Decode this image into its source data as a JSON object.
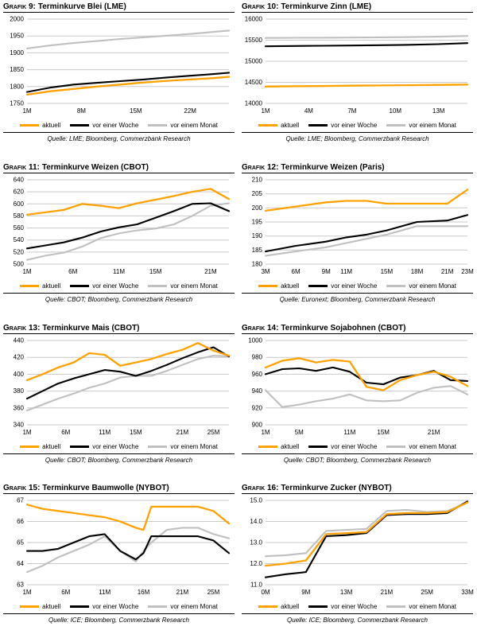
{
  "colors": {
    "aktuell": "#FFA200",
    "week": "#000000",
    "month": "#C0C0C0",
    "grid": "#C9C9C9"
  },
  "legend": {
    "aktuell": "aktuell",
    "week": "vor einer Woche",
    "month": "vor einem Monat"
  },
  "chart_data": [
    {
      "type": "line",
      "label": "Grafik 9:",
      "title": "Terminkurve Blei (LME)",
      "source": "Quelle: LME; Bloomberg, Commerzbank Research",
      "ylim": [
        1750,
        2000
      ],
      "yticks": [
        1750,
        1800,
        1850,
        1900,
        1950,
        2000
      ],
      "ytick_labels": [
        "1750",
        "1800",
        "1850",
        "1900",
        "1950",
        "2000"
      ],
      "x": [
        1,
        4,
        7,
        10,
        13,
        16,
        19,
        22,
        25,
        27
      ],
      "x_ticks": [
        {
          "pos": 1,
          "label": "1M"
        },
        {
          "pos": 8,
          "label": "8M"
        },
        {
          "pos": 15,
          "label": "15M"
        },
        {
          "pos": 22,
          "label": "22M"
        }
      ],
      "series": [
        {
          "name": "aktuell",
          "color": "aktuell",
          "values": [
            1776,
            1786,
            1793,
            1800,
            1806,
            1812,
            1817,
            1821,
            1825,
            1829
          ]
        },
        {
          "name": "vor einer Woche",
          "color": "week",
          "values": [
            1784,
            1797,
            1806,
            1811,
            1816,
            1821,
            1827,
            1832,
            1837,
            1841
          ]
        },
        {
          "name": "vor einem Monat",
          "color": "month",
          "values": [
            1913,
            1922,
            1929,
            1935,
            1941,
            1946,
            1951,
            1956,
            1962,
            1966
          ]
        }
      ]
    },
    {
      "type": "line",
      "label": "Grafik 10:",
      "title": "Terminkurve Zinn (LME)",
      "source": "Quelle: LME; Bloomberg, Commerzbank Research",
      "ylim": [
        14000,
        16000
      ],
      "yticks": [
        14000,
        14500,
        15000,
        15500,
        16000
      ],
      "ytick_labels": [
        "14000",
        "14500",
        "15000",
        "15500",
        "16000"
      ],
      "x": [
        1,
        3,
        5,
        7,
        9,
        11,
        13,
        15
      ],
      "x_ticks": [
        {
          "pos": 1,
          "label": "1M"
        },
        {
          "pos": 4,
          "label": "4M"
        },
        {
          "pos": 7,
          "label": "7M"
        },
        {
          "pos": 10,
          "label": "10M"
        },
        {
          "pos": 13,
          "label": "13M"
        }
      ],
      "series": [
        {
          "name": "aktuell",
          "color": "aktuell",
          "values": [
            14400,
            14408,
            14414,
            14420,
            14427,
            14433,
            14440,
            14447
          ]
        },
        {
          "name": "vor einer Woche",
          "color": "week",
          "values": [
            15355,
            15362,
            15368,
            15374,
            15381,
            15391,
            15406,
            15430
          ]
        },
        {
          "name": "vor einem Monat",
          "color": "month",
          "values": [
            15552,
            15556,
            15559,
            15563,
            15567,
            15573,
            15583,
            15600
          ]
        }
      ]
    },
    {
      "type": "line",
      "label": "Grafik 11:",
      "title": "Terminkurve Weizen (CBOT)",
      "source": "Quelle: CBOT; Bloomberg, Commerzbank Research",
      "ylim": [
        500,
        640
      ],
      "yticks": [
        500,
        520,
        540,
        560,
        580,
        600,
        620,
        640
      ],
      "ytick_labels": [
        "500",
        "520",
        "540",
        "560",
        "580",
        "600",
        "620",
        "640"
      ],
      "x": [
        1,
        3,
        5,
        7,
        9,
        11,
        13,
        15,
        17,
        19,
        21,
        23
      ],
      "x_ticks": [
        {
          "pos": 1,
          "label": "1M"
        },
        {
          "pos": 6,
          "label": "6M"
        },
        {
          "pos": 11,
          "label": "11M"
        },
        {
          "pos": 15,
          "label": "15M"
        },
        {
          "pos": 21,
          "label": "21M"
        }
      ],
      "series": [
        {
          "name": "aktuell",
          "color": "aktuell",
          "values": [
            582,
            586,
            590,
            600,
            597,
            593,
            601,
            607,
            613,
            620,
            625,
            608
          ]
        },
        {
          "name": "vor einer Woche",
          "color": "week",
          "values": [
            526,
            531,
            536,
            544,
            554,
            561,
            566,
            577,
            588,
            600,
            601,
            588
          ]
        },
        {
          "name": "vor einem Monat",
          "color": "month",
          "values": [
            507,
            514,
            519,
            529,
            543,
            551,
            556,
            559,
            566,
            580,
            597,
            601
          ]
        }
      ]
    },
    {
      "type": "line",
      "label": "Grafik 12:",
      "title": "Terminkurve Weizen (Paris)",
      "source": "Quelle: Euronext; Bloomberg, Commerzbank Research",
      "ylim": [
        180,
        210
      ],
      "yticks": [
        180,
        185,
        190,
        195,
        200,
        205,
        210
      ],
      "ytick_labels": [
        "180",
        "185",
        "190",
        "195",
        "200",
        "205",
        "210"
      ],
      "x": [
        3,
        6,
        9,
        11,
        13,
        15,
        18,
        21,
        23
      ],
      "x_ticks": [
        {
          "pos": 3,
          "label": "3M"
        },
        {
          "pos": 6,
          "label": "6M"
        },
        {
          "pos": 9,
          "label": "9M"
        },
        {
          "pos": 11,
          "label": "11M"
        },
        {
          "pos": 15,
          "label": "15M"
        },
        {
          "pos": 18,
          "label": "18M"
        },
        {
          "pos": 21,
          "label": "21M"
        },
        {
          "pos": 23,
          "label": "23M"
        }
      ],
      "series": [
        {
          "name": "aktuell",
          "color": "aktuell",
          "values": [
            199,
            200.5,
            202,
            202.5,
            202.5,
            201.5,
            201.5,
            201.5,
            206.5
          ]
        },
        {
          "name": "vor einer Woche",
          "color": "week",
          "values": [
            184.5,
            186.5,
            188,
            189.5,
            190.5,
            192,
            195,
            195.5,
            197.5
          ]
        },
        {
          "name": "vor einem Monat",
          "color": "month",
          "values": [
            183,
            184.5,
            186,
            187.5,
            189,
            190.5,
            193.5,
            193.5,
            193.5
          ]
        }
      ]
    },
    {
      "type": "line",
      "label": "Grafik 13:",
      "title": "Terminkurve Mais (CBOT)",
      "source": "Quelle: CBOT; Bloomberg, Commerzbank Research",
      "ylim": [
        340,
        440
      ],
      "yticks": [
        340,
        360,
        380,
        400,
        420,
        440
      ],
      "ytick_labels": [
        "340",
        "360",
        "380",
        "400",
        "420",
        "440"
      ],
      "x": [
        1,
        3,
        5,
        7,
        9,
        11,
        13,
        15,
        17,
        19,
        21,
        23,
        25,
        27
      ],
      "x_ticks": [
        {
          "pos": 1,
          "label": "1M"
        },
        {
          "pos": 6,
          "label": "6M"
        },
        {
          "pos": 11,
          "label": "11M"
        },
        {
          "pos": 15,
          "label": "15M"
        },
        {
          "pos": 21,
          "label": "21M"
        },
        {
          "pos": 25,
          "label": "25M"
        }
      ],
      "series": [
        {
          "name": "aktuell",
          "color": "aktuell",
          "values": [
            393,
            400,
            408,
            414,
            425,
            423,
            410,
            414,
            418,
            424,
            429,
            437,
            428,
            422
          ]
        },
        {
          "name": "vor einer Woche",
          "color": "week",
          "values": [
            371,
            380,
            389,
            395,
            400,
            405,
            403,
            398,
            404,
            411,
            419,
            426,
            432,
            421
          ]
        },
        {
          "name": "vor einem Monat",
          "color": "month",
          "values": [
            357,
            364,
            371,
            377,
            384,
            389,
            396,
            398,
            398,
            404,
            411,
            418,
            422,
            421
          ]
        }
      ]
    },
    {
      "type": "line",
      "label": "Grafik 14:",
      "title": "Terminkurve Sojabohnen (CBOT)",
      "source": "Quelle: CBOT; Bloomberg, Commerzbank Research",
      "ylim": [
        900,
        1000
      ],
      "yticks": [
        900,
        920,
        940,
        960,
        980,
        1000
      ],
      "ytick_labels": [
        "900",
        "920",
        "940",
        "960",
        "980",
        "1000"
      ],
      "x": [
        1,
        3,
        5,
        7,
        9,
        11,
        13,
        15,
        17,
        19,
        21,
        23,
        25
      ],
      "x_ticks": [
        {
          "pos": 1,
          "label": "1M"
        },
        {
          "pos": 5,
          "label": "5M"
        },
        {
          "pos": 11,
          "label": "11M"
        },
        {
          "pos": 15,
          "label": "15M"
        },
        {
          "pos": 21,
          "label": "21M"
        }
      ],
      "series": [
        {
          "name": "aktuell",
          "color": "aktuell",
          "values": [
            968,
            976,
            979,
            974,
            977,
            975,
            945,
            941,
            953,
            959,
            963,
            957,
            946
          ]
        },
        {
          "name": "vor einer Woche",
          "color": "week",
          "values": [
            960,
            966,
            967,
            964,
            968,
            963,
            950,
            948,
            956,
            959,
            964,
            953,
            952
          ]
        },
        {
          "name": "vor einem Monat",
          "color": "month",
          "values": [
            941,
            921,
            924,
            928,
            931,
            936,
            929,
            928,
            929,
            938,
            944,
            946,
            936
          ]
        }
      ]
    },
    {
      "type": "line",
      "label": "Grafik 15:",
      "title": "Terminkurve Baumwolle (NYBOT)",
      "source": "Quelle: ICE; Bloomberg, Commerzbank Research",
      "ylim": [
        63,
        67
      ],
      "yticks": [
        63,
        64,
        65,
        66,
        67
      ],
      "ytick_labels": [
        "63",
        "64",
        "65",
        "66",
        "67"
      ],
      "x": [
        1,
        3,
        5,
        7,
        9,
        11,
        13,
        15,
        16,
        17,
        19,
        21,
        23,
        25,
        27
      ],
      "x_ticks": [
        {
          "pos": 1,
          "label": "1M"
        },
        {
          "pos": 6,
          "label": "6M"
        },
        {
          "pos": 11,
          "label": "11M"
        },
        {
          "pos": 16,
          "label": "16M"
        },
        {
          "pos": 21,
          "label": "21M"
        },
        {
          "pos": 25,
          "label": "25M"
        }
      ],
      "series": [
        {
          "name": "aktuell",
          "color": "aktuell",
          "values": [
            66.8,
            66.6,
            66.5,
            66.4,
            66.3,
            66.2,
            66.0,
            65.7,
            65.6,
            66.7,
            66.7,
            66.7,
            66.7,
            66.5,
            65.9
          ]
        },
        {
          "name": "vor einer Woche",
          "color": "week",
          "values": [
            64.6,
            64.6,
            64.7,
            65.0,
            65.3,
            65.4,
            64.6,
            64.2,
            64.5,
            65.3,
            65.3,
            65.3,
            65.3,
            65.1,
            64.5
          ]
        },
        {
          "name": "vor einem Monat",
          "color": "month",
          "values": [
            63.6,
            63.9,
            64.3,
            64.6,
            64.9,
            65.3,
            64.6,
            64.1,
            64.6,
            65.0,
            65.6,
            65.7,
            65.7,
            65.4,
            65.2
          ]
        }
      ]
    },
    {
      "type": "line",
      "label": "Grafik 16:",
      "title": "Terminkurve Zucker (NYBOT)",
      "source": "Quelle: ICE; Bloomberg, Commerzbank Research",
      "ylim": [
        11.0,
        15.0
      ],
      "yticks": [
        11.0,
        12.0,
        13.0,
        14.0,
        15.0
      ],
      "ytick_labels": [
        "11.0",
        "12.0",
        "13.0",
        "14.0",
        "15.0"
      ],
      "x": [
        0,
        1,
        2,
        3,
        4,
        5,
        6,
        7,
        8,
        9,
        10
      ],
      "x_ticks": [
        {
          "pos": 0,
          "label": "0M"
        },
        {
          "pos": 2,
          "label": "9M"
        },
        {
          "pos": 4,
          "label": "13M"
        },
        {
          "pos": 6,
          "label": "21M"
        },
        {
          "pos": 8,
          "label": "25M"
        },
        {
          "pos": 10,
          "label": "33M"
        }
      ],
      "series": [
        {
          "name": "aktuell",
          "color": "aktuell",
          "values": [
            11.9,
            12.0,
            12.15,
            13.4,
            13.45,
            13.5,
            14.35,
            14.4,
            14.4,
            14.45,
            14.9
          ]
        },
        {
          "name": "vor einer Woche",
          "color": "week",
          "values": [
            11.35,
            11.5,
            11.6,
            13.3,
            13.35,
            13.45,
            14.3,
            14.35,
            14.35,
            14.4,
            14.95
          ]
        },
        {
          "name": "vor einem Monat",
          "color": "month",
          "values": [
            12.35,
            12.4,
            12.5,
            13.55,
            13.6,
            13.65,
            14.5,
            14.55,
            14.45,
            14.5,
            14.9
          ]
        }
      ]
    }
  ]
}
